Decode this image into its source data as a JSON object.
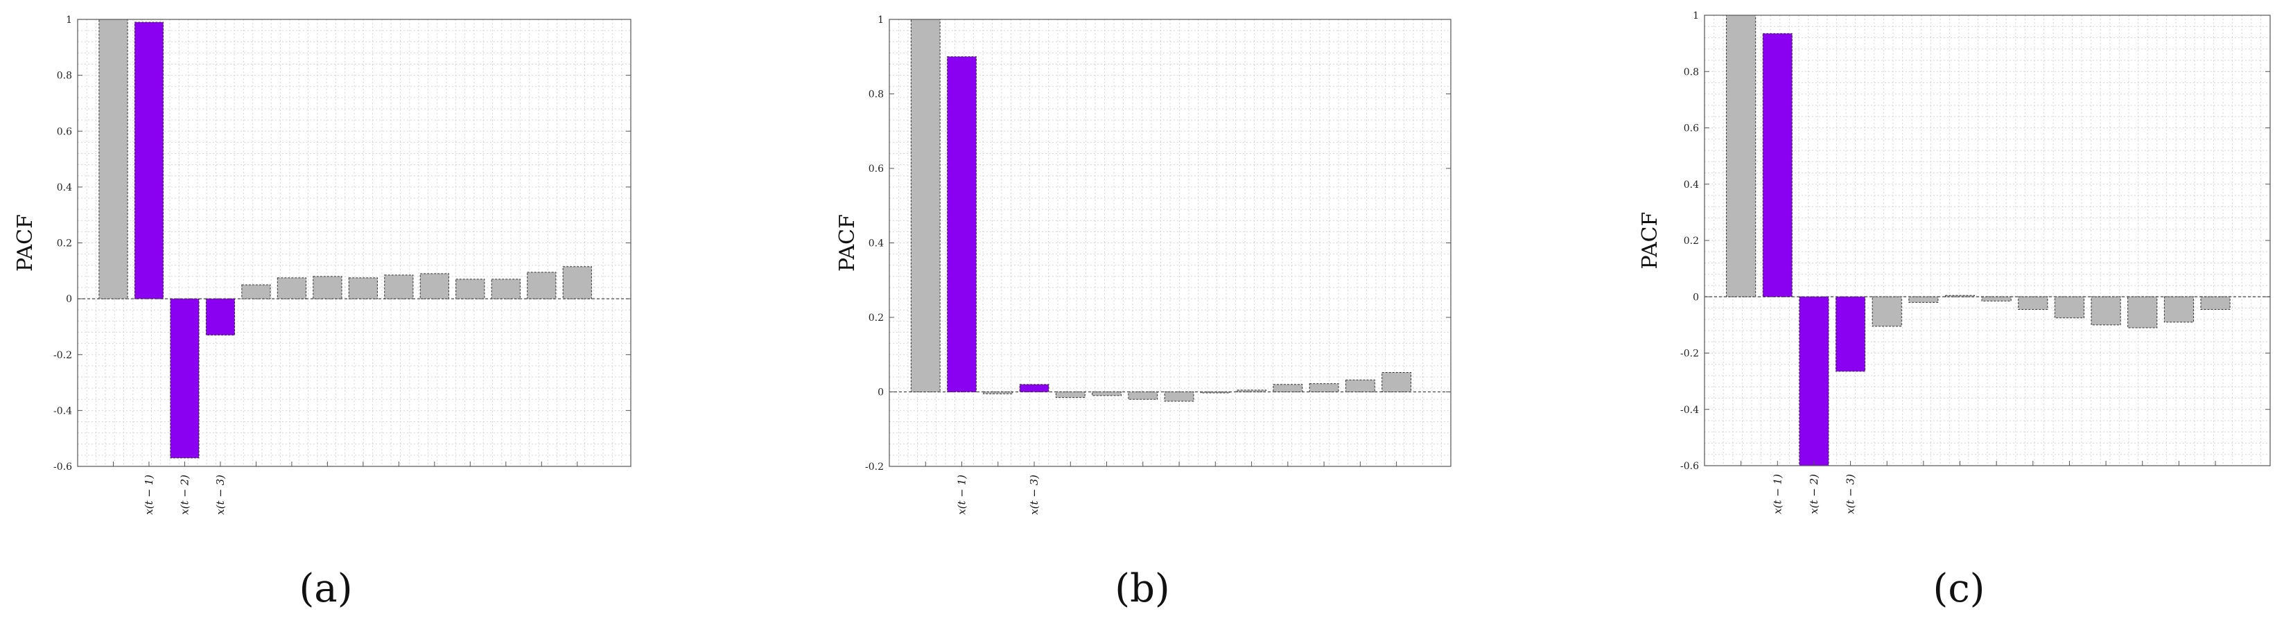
{
  "colors": {
    "highlight": "#8a00f0",
    "bar": "#b8b8b8",
    "bar_stroke": "#333333",
    "grid": "#d6d6d6",
    "axis": "#555555"
  },
  "chart_data": [
    {
      "type": "bar",
      "panel_label": "(a)",
      "ylabel": "PACF",
      "ylim": [
        -0.6,
        1.0
      ],
      "yticks": [
        1,
        0.8,
        0.6,
        0.4,
        0.2,
        0,
        -0.2,
        -0.4,
        -0.6
      ],
      "ytick_labels": [
        "1",
        "0.8",
        "0.6",
        "0.4",
        "0.2",
        "0",
        "-0.2",
        "-0.4",
        "-0.6"
      ],
      "lags": [
        0,
        1,
        2,
        3,
        4,
        5,
        6,
        7,
        8,
        9,
        10,
        11,
        12,
        13
      ],
      "values": [
        1.0,
        0.99,
        -0.57,
        -0.13,
        0.05,
        0.075,
        0.08,
        0.075,
        0.085,
        0.09,
        0.07,
        0.07,
        0.095,
        0.115
      ],
      "highlighted_lags": [
        1,
        2,
        3
      ],
      "lag_labels": [
        {
          "lag": 1,
          "label": "x(t − 1)"
        },
        {
          "lag": 2,
          "label": "x(t − 2)"
        },
        {
          "lag": 3,
          "label": "x(t − 3)"
        }
      ],
      "grid": true
    },
    {
      "type": "bar",
      "panel_label": "(b)",
      "ylabel": "PACF",
      "ylim": [
        -0.2,
        1.0
      ],
      "yticks": [
        1,
        0.8,
        0.6,
        0.4,
        0.2,
        0,
        -0.2
      ],
      "ytick_labels": [
        "1",
        "0.8",
        "0.6",
        "0.4",
        "0.2",
        "0",
        "-0.2"
      ],
      "lags": [
        0,
        1,
        2,
        3,
        4,
        5,
        6,
        7,
        8,
        9,
        10,
        11,
        12,
        13
      ],
      "values": [
        1.0,
        0.9,
        -0.005,
        0.02,
        -0.015,
        -0.01,
        -0.02,
        -0.025,
        0.0,
        0.005,
        0.02,
        0.022,
        0.032,
        0.052
      ],
      "highlighted_lags": [
        1,
        3
      ],
      "lag_labels": [
        {
          "lag": 1,
          "label": "x(t − 1)"
        },
        {
          "lag": 3,
          "label": "x(t − 3)"
        }
      ],
      "grid": true
    },
    {
      "type": "bar",
      "panel_label": "(c)",
      "ylabel": "PACF",
      "ylim": [
        -0.6,
        1.0
      ],
      "yticks": [
        1,
        0.8,
        0.6,
        0.4,
        0.2,
        0,
        -0.2,
        -0.4,
        -0.6
      ],
      "ytick_labels": [
        "1",
        "0.8",
        "0.6",
        "0.4",
        "0.2",
        "0",
        "-0.2",
        "-0.4",
        "-0.6"
      ],
      "lags": [
        0,
        1,
        2,
        3,
        4,
        5,
        6,
        7,
        8,
        9,
        10,
        11,
        12,
        13
      ],
      "values": [
        1.0,
        0.935,
        -0.6,
        -0.265,
        -0.105,
        -0.02,
        0.005,
        -0.015,
        -0.045,
        -0.075,
        -0.1,
        -0.11,
        -0.09,
        -0.045
      ],
      "highlighted_lags": [
        1,
        2,
        3
      ],
      "lag_labels": [
        {
          "lag": 1,
          "label": "x(t − 1)"
        },
        {
          "lag": 2,
          "label": "x(t − 2)"
        },
        {
          "lag": 3,
          "label": "x(t − 3)"
        }
      ],
      "grid": true
    }
  ]
}
